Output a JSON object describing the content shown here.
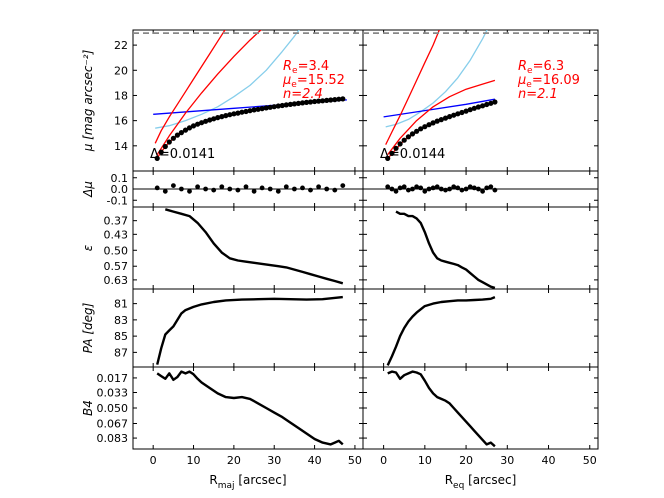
{
  "chart_data": {
    "type": "line",
    "columns": [
      {
        "id": "left",
        "xlabel_main": "R",
        "xlabel_sub": "maj",
        "xlabel_rest": " [arcsec]",
        "xlim": [
          -5,
          52
        ],
        "xticks": [
          "0",
          "10",
          "20",
          "30",
          "40",
          "50"
        ]
      },
      {
        "id": "right",
        "xlabel_main": "R",
        "xlabel_sub": "eq",
        "xlabel_rest": " [arcsec]",
        "xlim": [
          -5,
          52
        ],
        "xticks": [
          "0",
          "10",
          "20",
          "30",
          "40",
          "50"
        ]
      }
    ],
    "rows": [
      {
        "id": "mu",
        "ylabel": "μ [mag arcsec⁻²]",
        "ylim": [
          23.2,
          12
        ],
        "yticks": [
          "14",
          "16",
          "18",
          "20",
          "22"
        ]
      },
      {
        "id": "dmu",
        "ylabel": "Δμ",
        "ylim": [
          0.16,
          -0.16
        ],
        "yticks": [
          "-0.1",
          "0.0",
          "0.1"
        ]
      },
      {
        "id": "eps",
        "ylabel": "ε",
        "ylim": [
          0.31,
          0.67
        ],
        "yticks": [
          "0.63",
          "0.57",
          "0.50",
          "0.43",
          "0.37"
        ]
      },
      {
        "id": "pa",
        "ylabel": "PA [deg]",
        "ylim": [
          79.2,
          88.8
        ],
        "yticks": [
          "87",
          "85",
          "83",
          "81"
        ]
      },
      {
        "id": "b4",
        "ylabel": "B4",
        "ylim": [
          0.005,
          0.095
        ],
        "yticks": [
          "0.083",
          "0.067",
          "0.050",
          "0.033",
          "0.017"
        ]
      }
    ],
    "annotations": {
      "left": {
        "Re_label": "R",
        "Re_sub": "e",
        "Re_value": "=3.4",
        "mue_label": "μ",
        "mue_sub": "e",
        "mue_value": "=15.52",
        "n_text": "n=2.4",
        "delta_text": "Δ=0.0141"
      },
      "right": {
        "Re_label": "R",
        "Re_sub": "e",
        "Re_value": "=6.3",
        "mue_label": "μ",
        "mue_sub": "e",
        "mue_value": "=16.09",
        "n_text": "n=2.1",
        "delta_text": "Δ=0.0144"
      }
    },
    "series": {
      "left": {
        "mu_points": {
          "x": [
            1,
            2,
            3,
            4,
            5,
            6,
            7,
            8,
            9,
            10,
            11,
            12,
            13,
            14,
            15,
            16,
            17,
            18,
            19,
            20,
            21,
            22,
            23,
            24,
            25,
            26,
            27,
            28,
            29,
            30,
            31,
            32,
            33,
            34,
            35,
            36,
            37,
            38,
            39,
            40,
            41,
            42,
            43,
            44,
            45,
            46,
            47
          ],
          "y": [
            13.0,
            13.5,
            13.95,
            14.3,
            14.6,
            14.85,
            15.05,
            15.25,
            15.42,
            15.58,
            15.72,
            15.84,
            15.95,
            16.05,
            16.15,
            16.24,
            16.32,
            16.4,
            16.47,
            16.54,
            16.6,
            16.67,
            16.73,
            16.79,
            16.85,
            16.9,
            16.96,
            17.01,
            17.06,
            17.11,
            17.16,
            17.2,
            17.25,
            17.29,
            17.33,
            17.37,
            17.41,
            17.45,
            17.48,
            17.52,
            17.55,
            17.58,
            17.61,
            17.64,
            17.67,
            17.7,
            17.73
          ]
        },
        "mu_total": {
          "x": [
            1,
            3,
            5,
            8,
            12,
            16,
            20,
            25,
            30,
            35,
            40,
            47
          ],
          "y": [
            13.05,
            13.95,
            14.6,
            15.25,
            15.84,
            16.24,
            16.54,
            16.85,
            17.11,
            17.33,
            17.52,
            17.73
          ]
        },
        "mu_bulge": {
          "x": [
            0.5,
            2,
            4,
            6,
            8,
            10,
            12,
            14,
            16,
            18
          ],
          "y": [
            14.2,
            15.2,
            16.3,
            17.3,
            18.3,
            19.3,
            20.3,
            21.3,
            22.3,
            23.3
          ]
        },
        "mu_bar": {
          "x": [
            0.5,
            4,
            8,
            12,
            16,
            20,
            24,
            28,
            32,
            35,
            38
          ],
          "y": [
            15.4,
            15.6,
            16.0,
            16.5,
            17.1,
            17.9,
            18.8,
            20.0,
            21.5,
            22.7,
            24.0
          ]
        },
        "mu_disk": {
          "x": [
            0,
            10,
            20,
            30,
            40,
            48
          ],
          "y": [
            16.5,
            16.74,
            16.98,
            17.22,
            17.46,
            17.65
          ]
        },
        "mu_outer": {
          "x": [
            1,
            4,
            8,
            12,
            16,
            20,
            24,
            28,
            30
          ],
          "y": [
            13.3,
            14.8,
            16.6,
            18.2,
            19.7,
            21.1,
            22.4,
            23.6,
            24.2
          ]
        },
        "dmu_points": {
          "x": [
            1,
            3,
            5,
            7,
            9,
            11,
            13,
            15,
            17,
            19,
            21,
            23,
            25,
            27,
            29,
            31,
            33,
            35,
            37,
            39,
            41,
            43,
            45,
            47
          ],
          "y": [
            0.01,
            -0.02,
            0.03,
            0.0,
            -0.02,
            0.02,
            0.0,
            -0.01,
            0.02,
            0.0,
            -0.01,
            0.02,
            -0.02,
            0.01,
            0.0,
            -0.02,
            0.02,
            0.0,
            0.01,
            -0.01,
            0.02,
            0.0,
            -0.01,
            0.03
          ]
        },
        "eps": {
          "x": [
            3,
            5,
            7,
            9,
            11,
            13,
            15,
            17,
            19,
            21,
            23,
            25,
            27,
            29,
            31,
            33,
            35,
            37,
            39,
            41,
            43,
            45,
            47
          ],
          "y": [
            0.32,
            0.33,
            0.34,
            0.35,
            0.38,
            0.42,
            0.47,
            0.51,
            0.535,
            0.545,
            0.55,
            0.555,
            0.56,
            0.565,
            0.57,
            0.575,
            0.585,
            0.595,
            0.605,
            0.615,
            0.625,
            0.635,
            0.645
          ]
        },
        "pa": {
          "x": [
            1,
            2,
            3,
            4,
            5,
            6,
            7,
            8,
            10,
            12,
            15,
            18,
            22,
            26,
            30,
            34,
            38,
            42,
            47
          ],
          "y": [
            88.5,
            86.5,
            84.8,
            84.3,
            83.8,
            83.0,
            82.2,
            81.8,
            81.4,
            81.1,
            80.8,
            80.6,
            80.5,
            80.45,
            80.4,
            80.45,
            80.5,
            80.45,
            80.2
          ]
        },
        "b4": {
          "x": [
            1,
            2,
            3,
            4,
            5,
            6,
            7,
            8,
            9,
            10,
            11,
            12,
            14,
            16,
            18,
            20,
            22,
            24,
            26,
            28,
            30,
            32,
            34,
            36,
            38,
            40,
            42,
            44,
            45,
            46,
            47
          ],
          "y": [
            0.012,
            0.015,
            0.018,
            0.012,
            0.019,
            0.016,
            0.01,
            0.012,
            0.01,
            0.013,
            0.018,
            0.022,
            0.028,
            0.034,
            0.038,
            0.039,
            0.038,
            0.04,
            0.045,
            0.05,
            0.055,
            0.06,
            0.066,
            0.072,
            0.078,
            0.084,
            0.088,
            0.09,
            0.088,
            0.086,
            0.09
          ]
        }
      },
      "right": {
        "mu_points": {
          "x": [
            1,
            2,
            3,
            4,
            5,
            6,
            7,
            8,
            9,
            10,
            11,
            12,
            13,
            14,
            15,
            16,
            17,
            18,
            19,
            20,
            21,
            22,
            23,
            24,
            25,
            26,
            27
          ],
          "y": [
            13.0,
            13.4,
            13.8,
            14.15,
            14.45,
            14.72,
            14.95,
            15.15,
            15.35,
            15.52,
            15.68,
            15.82,
            15.96,
            16.08,
            16.2,
            16.32,
            16.43,
            16.54,
            16.65,
            16.76,
            16.87,
            16.98,
            17.08,
            17.18,
            17.28,
            17.38,
            17.48
          ]
        },
        "mu_total": {
          "x": [
            1,
            5,
            10,
            15,
            20,
            27
          ],
          "y": [
            13.0,
            14.45,
            15.52,
            16.2,
            16.76,
            17.48
          ]
        },
        "mu_bulge": {
          "x": [
            0.5,
            2,
            4,
            6,
            8,
            10,
            12,
            13.5
          ],
          "y": [
            14.1,
            15.1,
            16.4,
            17.8,
            19.2,
            20.6,
            22.0,
            23.2
          ]
        },
        "mu_bar": {
          "x": [
            0.5,
            3,
            6,
            9,
            12,
            15,
            18,
            21,
            24,
            26
          ],
          "y": [
            15.5,
            15.7,
            16.1,
            16.7,
            17.4,
            18.3,
            19.4,
            20.8,
            22.5,
            23.8
          ]
        },
        "mu_disk": {
          "x": [
            0,
            10,
            20,
            27
          ],
          "y": [
            16.3,
            16.8,
            17.3,
            17.7
          ]
        },
        "mu_outer": {
          "x": [
            1,
            4,
            8,
            12,
            16,
            20,
            24,
            27
          ],
          "y": [
            13.3,
            14.6,
            16.0,
            17.1,
            17.9,
            18.5,
            18.9,
            19.2
          ]
        },
        "dmu_points": {
          "x": [
            1,
            2,
            3,
            4,
            5,
            6,
            7,
            8,
            9,
            10,
            11,
            12,
            13,
            14,
            15,
            16,
            17,
            18,
            19,
            20,
            21,
            22,
            23,
            24,
            25,
            26,
            27
          ],
          "y": [
            0.02,
            0.0,
            -0.02,
            0.01,
            0.02,
            -0.01,
            0.0,
            0.02,
            0.01,
            -0.02,
            0.0,
            0.01,
            0.02,
            0.0,
            -0.01,
            0.0,
            0.02,
            0.01,
            -0.01,
            0.0,
            0.02,
            0.01,
            0.0,
            -0.02,
            0.01,
            0.02,
            -0.01
          ]
        },
        "eps": {
          "x": [
            3,
            4,
            5,
            6,
            7,
            8,
            9,
            10,
            11,
            12,
            13,
            14,
            15,
            16,
            17,
            18,
            19,
            20,
            21,
            22,
            23,
            24,
            25,
            26,
            27
          ],
          "y": [
            0.33,
            0.34,
            0.34,
            0.35,
            0.35,
            0.36,
            0.38,
            0.42,
            0.47,
            0.51,
            0.535,
            0.545,
            0.55,
            0.555,
            0.56,
            0.565,
            0.575,
            0.585,
            0.6,
            0.615,
            0.63,
            0.64,
            0.65,
            0.66,
            0.665
          ]
        },
        "pa": {
          "x": [
            1,
            2,
            3,
            4,
            5,
            6,
            7,
            8,
            9,
            10,
            12,
            14,
            16,
            18,
            20,
            22,
            24,
            26,
            27
          ],
          "y": [
            88.6,
            87.5,
            86.3,
            85.0,
            84.0,
            83.2,
            82.6,
            82.1,
            81.7,
            81.3,
            81.0,
            80.8,
            80.7,
            80.6,
            80.6,
            80.55,
            80.5,
            80.4,
            80.2
          ]
        },
        "b4": {
          "x": [
            1,
            2,
            3,
            4,
            5,
            6,
            7,
            8,
            9,
            10,
            11,
            12,
            13,
            14,
            15,
            16,
            17,
            18,
            19,
            20,
            21,
            22,
            23,
            24,
            25,
            26,
            27
          ],
          "y": [
            0.012,
            0.01,
            0.011,
            0.018,
            0.014,
            0.012,
            0.01,
            0.011,
            0.013,
            0.02,
            0.028,
            0.034,
            0.038,
            0.04,
            0.042,
            0.045,
            0.05,
            0.055,
            0.06,
            0.065,
            0.07,
            0.075,
            0.08,
            0.085,
            0.09,
            0.088,
            0.092
          ]
        }
      }
    },
    "colors": {
      "sersic": "#ff0000",
      "disk": "#0000ff",
      "bar": "#87ceeb",
      "points": "#000000",
      "reference": "#888888"
    }
  }
}
